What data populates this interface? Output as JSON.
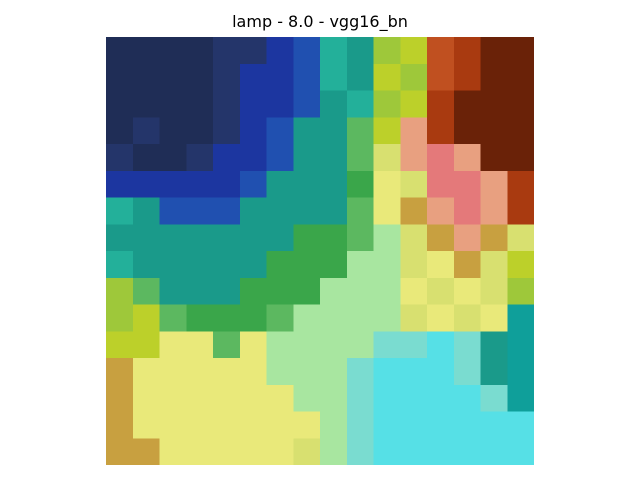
{
  "figure": {
    "title": "lamp - 8.0 - vgg16_bn"
  },
  "image": {
    "description_colors": {
      "navy": "#1f2d56",
      "blue": "#1c36a0",
      "teal": "#1a9a8a",
      "green": "#3aa64a",
      "lime": "#bcd02a",
      "yellow": "#e9e97a",
      "cyan": "#56e0e6",
      "salmon": "#e4797a",
      "rust": "#a93a10",
      "brown": "#6a2208"
    },
    "grid": {
      "rows": 16,
      "cols": 16
    }
  }
}
